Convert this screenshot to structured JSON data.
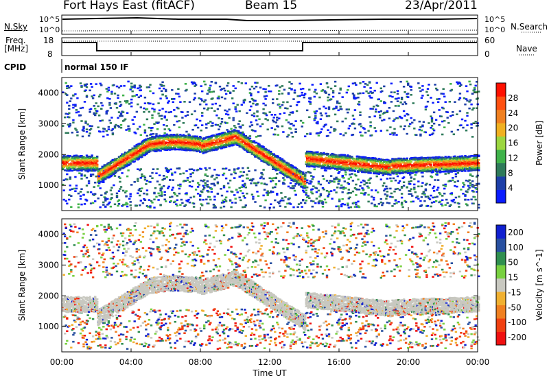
{
  "header": {
    "station": "Fort Hays East (fitACF)",
    "beam": "Beam 15",
    "date": "23/Apr/2011"
  },
  "noise_panel": {
    "left_label": "N.Sky",
    "right_label": "N.Search",
    "top_tick": "10^5",
    "bottom_tick": "10^0"
  },
  "freq_panel": {
    "left_label_1": "Freq.",
    "left_label_2": "[MHz]",
    "right_label": "Nave",
    "left_ticks": [
      "18",
      "8"
    ],
    "right_ticks": [
      "60",
      "0"
    ]
  },
  "cpid": {
    "label": "CPID",
    "value": "normal 150 IF"
  },
  "chart_data": [
    {
      "type": "heatmap",
      "name": "power",
      "ylabel": "Slant Range [km]",
      "yticks": [
        1000,
        2000,
        3000,
        4000
      ],
      "ylim": [
        180,
        4500
      ],
      "colorbar_label": "Power [dB]",
      "colorbar_ticks": [
        4,
        8,
        12,
        16,
        20,
        24,
        28
      ],
      "colorbar_colors": [
        "#0a1cff",
        "#1d3fa8",
        "#2e7a5a",
        "#3fb24a",
        "#9bd640",
        "#f0b020",
        "#f08020",
        "#ff5010",
        "#ff1000"
      ]
    },
    {
      "type": "heatmap",
      "name": "velocity",
      "ylabel": "Slant Range [km]",
      "yticks": [
        1000,
        2000,
        3000,
        4000
      ],
      "ylim": [
        180,
        4500
      ],
      "colorbar_label": "Velocity [m s^-1]",
      "colorbar_ticks": [
        200,
        100,
        50,
        15,
        -15,
        -50,
        -100,
        -200
      ],
      "colorbar_colors": [
        "#1020d0",
        "#2850a0",
        "#2f8f4f",
        "#78d040",
        "#c8c8c0",
        "#f0b030",
        "#f08020",
        "#f04010",
        "#f01010"
      ]
    }
  ],
  "x_axis": {
    "label": "Time UT",
    "ticks": [
      "00:00",
      "04:00",
      "08:00",
      "12:00",
      "16:00",
      "20:00",
      "00:00"
    ],
    "xlim_hours": [
      0,
      24
    ]
  },
  "colors": {
    "axis": "#000000",
    "velocity_gray": "#c8c8c0"
  }
}
